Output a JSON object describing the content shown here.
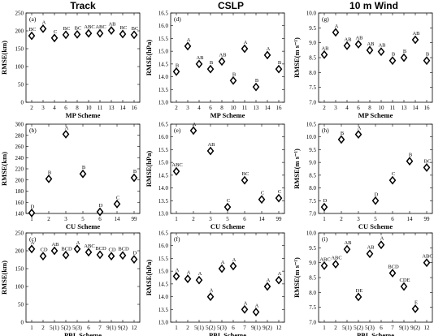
{
  "columns": [
    "Track",
    "CSLP",
    "10 m Wind"
  ],
  "chart_data": [
    {
      "type": "scatter",
      "tag": "(a)",
      "ylabel": "RMSE(km)",
      "xlabel": "MP Scheme",
      "ylim": [
        0,
        250
      ],
      "yticks": [
        0,
        50,
        100,
        150,
        200,
        250
      ],
      "categories": [
        "2",
        "3",
        "4",
        "6",
        "8",
        "10",
        "11",
        "13",
        "14",
        "16"
      ],
      "values": [
        186,
        206,
        180,
        189,
        190,
        193,
        193,
        201,
        191,
        189
      ],
      "groups": [
        "BC",
        "A",
        "C",
        "BC",
        "BC",
        "ABC",
        "ABC",
        "AB",
        "BC",
        "BC"
      ]
    },
    {
      "type": "scatter",
      "tag": "(d)",
      "ylabel": "RMSE(hPa)",
      "xlabel": "MP Scheme",
      "ylim": [
        13.0,
        16.5
      ],
      "yticks": [
        13.0,
        13.5,
        14.0,
        14.5,
        15.0,
        15.5,
        16.0,
        16.5
      ],
      "categories": [
        "2",
        "3",
        "4",
        "6",
        "8",
        "10",
        "11",
        "13",
        "14",
        "16"
      ],
      "values": [
        14.2,
        15.2,
        14.5,
        14.3,
        14.6,
        13.85,
        15.1,
        13.6,
        14.85,
        14.3
      ],
      "groups": [
        "B",
        "A",
        "AB",
        "B",
        "AB",
        "B",
        "A",
        "B",
        "A",
        "B"
      ]
    },
    {
      "type": "scatter",
      "tag": "(g)",
      "ylabel": "RMSE(m s⁻¹)",
      "xlabel": "MP Scheme",
      "ylim": [
        7.0,
        10.0
      ],
      "yticks": [
        7.0,
        7.5,
        8.0,
        8.5,
        9.0,
        9.5,
        10.0
      ],
      "categories": [
        "2",
        "3",
        "4",
        "6",
        "8",
        "10",
        "11",
        "13",
        "14",
        "16"
      ],
      "values": [
        8.6,
        9.35,
        8.9,
        8.95,
        8.75,
        8.7,
        8.4,
        8.5,
        9.1,
        8.4
      ],
      "groups": [
        "AB",
        "A",
        "AB",
        "AB",
        "AB",
        "AB",
        "B",
        "B",
        "AB",
        "B"
      ]
    },
    {
      "type": "scatter",
      "tag": "(b)",
      "ylabel": "RMSE(km)",
      "xlabel": "CU Scheme",
      "ylim": [
        140,
        300
      ],
      "yticks": [
        140,
        160,
        180,
        200,
        220,
        240,
        260,
        280,
        300
      ],
      "categories": [
        "1",
        "2",
        "3",
        "5",
        "6",
        "14",
        "99"
      ],
      "values": [
        141,
        202,
        282,
        211,
        143,
        157,
        204
      ],
      "groups": [
        "D",
        "B",
        "A",
        "B",
        "D",
        "C",
        "B"
      ]
    },
    {
      "type": "scatter",
      "tag": "(e)",
      "ylabel": "RMSE(hPa)",
      "xlabel": "CU Scheme",
      "ylim": [
        13.0,
        16.5
      ],
      "yticks": [
        13.0,
        13.5,
        14.0,
        14.5,
        15.0,
        15.5,
        16.0,
        16.5
      ],
      "categories": [
        "1",
        "2",
        "3",
        "5",
        "6",
        "14",
        "99"
      ],
      "values": [
        14.65,
        16.25,
        15.45,
        13.25,
        14.3,
        13.55,
        13.6
      ],
      "groups": [
        "ABC",
        "A",
        "AB",
        "C",
        "BC",
        "C",
        "C"
      ]
    },
    {
      "type": "scatter",
      "tag": "(h)",
      "ylabel": "RMSE(m s⁻¹)",
      "xlabel": "CU Scheme",
      "ylim": [
        7.0,
        10.5
      ],
      "yticks": [
        7.0,
        7.5,
        8.0,
        8.5,
        9.0,
        9.5,
        10.0,
        10.5
      ],
      "categories": [
        "1",
        "2",
        "3",
        "5",
        "6",
        "14",
        "99"
      ],
      "values": [
        7.25,
        9.9,
        10.1,
        7.5,
        8.3,
        9.05,
        8.8
      ],
      "groups": [
        "D",
        "B",
        "A",
        "D",
        "C",
        "B",
        "BC"
      ]
    },
    {
      "type": "scatter",
      "tag": "(c)",
      "ylabel": "RMSE(km)",
      "xlabel": "PBL Scheme",
      "ylim": [
        0,
        250
      ],
      "yticks": [
        0,
        50,
        100,
        150,
        200,
        250
      ],
      "categories": [
        "1",
        "2",
        "5(1)",
        "5(2)",
        "5(3)",
        "6",
        "7",
        "9(1)",
        "9(2)",
        "12"
      ],
      "values": [
        205,
        185,
        200,
        188,
        205,
        196,
        189,
        185,
        187,
        176
      ],
      "groups": [
        "A",
        "CD",
        "AB",
        "BCD",
        "A",
        "ABC",
        "BCD",
        "CD",
        "BCD",
        "D"
      ]
    },
    {
      "type": "scatter",
      "tag": "(f)",
      "ylabel": "RMSE(hPa)",
      "xlabel": "PBL Scheme",
      "ylim": [
        13.0,
        16.5
      ],
      "yticks": [
        13.0,
        13.5,
        14.0,
        14.5,
        15.0,
        15.5,
        16.0,
        16.5
      ],
      "categories": [
        "1",
        "2",
        "5(1)",
        "5(2)",
        "5(3)",
        "6",
        "7",
        "9(1)",
        "9(2)",
        "12"
      ],
      "values": [
        14.8,
        14.7,
        14.65,
        14.0,
        15.1,
        15.2,
        13.5,
        13.4,
        14.4,
        14.65
      ],
      "groups": [
        "A",
        "A",
        "A",
        "A",
        "A",
        "A",
        "A",
        "A",
        "A",
        "A"
      ]
    },
    {
      "type": "scatter",
      "tag": "(i)",
      "ylabel": "RMSE(m s⁻¹)",
      "xlabel": "PBL Scheme",
      "ylim": [
        7.0,
        10.0
      ],
      "yticks": [
        7.0,
        7.5,
        8.0,
        8.5,
        9.0,
        9.5,
        10.0
      ],
      "categories": [
        "1",
        "2",
        "5(1)",
        "5(2)",
        "5(3)",
        "6",
        "7",
        "9(1)",
        "9(2)",
        "12"
      ],
      "values": [
        8.9,
        8.95,
        9.45,
        7.85,
        9.3,
        9.6,
        8.65,
        8.2,
        7.45,
        9.0
      ],
      "groups": [
        "ABC",
        "ABC",
        "AB",
        "DE",
        "AB",
        "A",
        "BCD",
        "CDE",
        "E",
        "ABC"
      ]
    }
  ]
}
